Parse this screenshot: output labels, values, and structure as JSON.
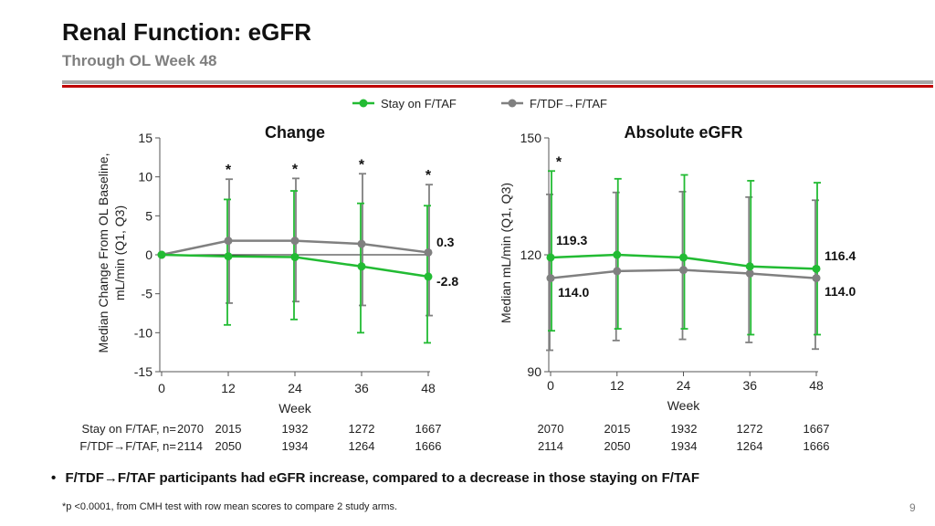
{
  "slide": {
    "title": "Renal Function: eGFR",
    "subtitle": "Through OL Week 48",
    "bullet": "F/TDF→F/TAF participants had eGFR increase, compared to a decrease in those staying on F/TAF",
    "bullet_marker": "•",
    "footnote": "*p <0.0001, from CMH test with row mean scores to compare 2 study arms.",
    "page_number": "9"
  },
  "legend": [
    {
      "name": "Stay on F/TAF",
      "color": "#22bb33"
    },
    {
      "name": "F/TDF→F/TAF",
      "color": "#808080"
    }
  ],
  "n_table": {
    "row_labels": [
      "Stay on F/TAF, n=",
      "F/TDF→F/TAF, n="
    ],
    "stay": [
      "2070",
      "2015",
      "1932",
      "1272",
      "1667"
    ],
    "switch": [
      "2114",
      "2050",
      "1934",
      "1264",
      "1666"
    ]
  },
  "chart_data": [
    {
      "type": "line",
      "title": "Change",
      "xlabel": "Week",
      "ylabel_lines": [
        "Median Change From OL Baseline,",
        "mL/min (Q1, Q3)"
      ],
      "x": [
        0,
        12,
        24,
        36,
        48
      ],
      "xlim": [
        0,
        48
      ],
      "ylim": [
        -15,
        15
      ],
      "yticks": [
        -15,
        -10,
        -5,
        0,
        5,
        10,
        15
      ],
      "reference_line": 0,
      "series": [
        {
          "name": "Stay on F/TAF",
          "color": "#22bb33",
          "values": [
            0,
            -0.2,
            -0.3,
            -1.5,
            -2.8
          ],
          "q1": [
            0,
            -9,
            -8.3,
            -10,
            -11.3
          ],
          "q3": [
            0,
            7.1,
            8.2,
            6.6,
            6.3
          ]
        },
        {
          "name": "F/TDF→F/TAF",
          "color": "#808080",
          "values": [
            0,
            1.8,
            1.8,
            1.4,
            0.3
          ],
          "q1": [
            0,
            -6.2,
            -6,
            -6.5,
            -7.8
          ],
          "q3": [
            0,
            9.7,
            9.8,
            10.4,
            9
          ]
        }
      ],
      "significance_x": [
        12,
        24,
        36,
        48
      ],
      "significance_mark": "*",
      "end_labels": {
        "F/TDF→F/TAF": "0.3",
        "Stay on F/TAF": "-2.8"
      }
    },
    {
      "type": "line",
      "title": "Absolute eGFR",
      "xlabel": "Week",
      "ylabel": "Median mL/min (Q1, Q3)",
      "x": [
        0,
        12,
        24,
        36,
        48
      ],
      "xlim": [
        0,
        48
      ],
      "ylim": [
        90,
        150
      ],
      "yticks": [
        90,
        120,
        150
      ],
      "series": [
        {
          "name": "Stay on F/TAF",
          "color": "#22bb33",
          "values": [
            119.3,
            120,
            119.3,
            117,
            116.4
          ],
          "q1": [
            100.5,
            101,
            101,
            99.5,
            99.5
          ],
          "q3": [
            141.5,
            139.5,
            140.5,
            139,
            138.5
          ]
        },
        {
          "name": "F/TDF→F/TAF",
          "color": "#808080",
          "values": [
            114,
            115.8,
            116.1,
            115.2,
            114
          ],
          "q1": [
            95.5,
            98,
            98.3,
            97.5,
            95.8
          ],
          "q3": [
            135.5,
            136,
            136.2,
            134.8,
            134
          ]
        }
      ],
      "significance_x": [
        0
      ],
      "significance_mark": "*",
      "point_labels": {
        "stay_start": "119.3",
        "stay_end": "116.4",
        "switch_start": "114.0",
        "switch_end": "114.0"
      }
    }
  ]
}
